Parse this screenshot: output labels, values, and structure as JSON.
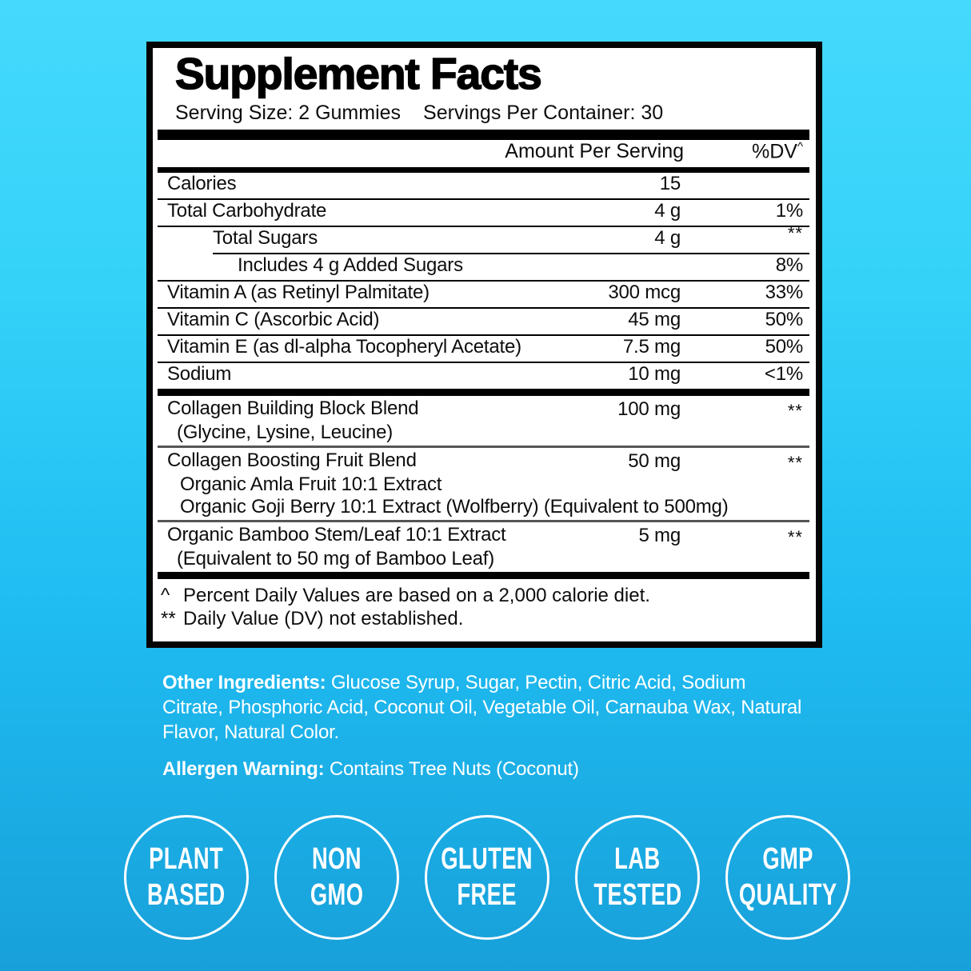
{
  "colors": {
    "background_top": "#45d9fd",
    "background_mid": "#1fbdf2",
    "background_bottom": "#18a0da",
    "panel_background": "#ffffff",
    "panel_border": "#000000",
    "text_dark": "#0d0d0d",
    "text_light": "#ffffff",
    "separator_medium": "#555555"
  },
  "panel": {
    "title": "Supplement Facts",
    "serving_size": "Serving Size: 2 Gummies",
    "servings_per_container": "Servings Per Container: 30",
    "columns": {
      "amount": "Amount Per Serving",
      "dv": "%DV",
      "dv_mark": "^"
    },
    "rows": [
      {
        "name": "Calories",
        "amount": "15",
        "dv": "",
        "indent": 0,
        "sep": "thin"
      },
      {
        "name": "Total Carbohydrate",
        "amount": "4 g",
        "dv": "1%",
        "indent": 0,
        "sep": "thin"
      },
      {
        "name": "Total Sugars",
        "amount": "4 g",
        "dv": "**",
        "indent": 1,
        "sep": "thin-indent"
      },
      {
        "name": "Includes 4 g Added Sugars",
        "amount": "",
        "dv": "8%",
        "indent": 2,
        "sep": "thin"
      },
      {
        "name": "Vitamin A (as Retinyl Palmitate)",
        "amount": "300 mcg",
        "dv": "33%",
        "indent": 0,
        "sep": "thin"
      },
      {
        "name": "Vitamin C (Ascorbic Acid)",
        "amount": "45 mg",
        "dv": "50%",
        "indent": 0,
        "sep": "thin"
      },
      {
        "name": "Vitamin E (as dl-alpha Tocopheryl Acetate)",
        "amount": "7.5 mg",
        "dv": "50%",
        "indent": 0,
        "sep": "thin"
      },
      {
        "name": "Sodium",
        "amount": "10 mg",
        "dv": "<1%",
        "indent": 0,
        "sep": "thick"
      },
      {
        "name": "Collagen Building Block Blend",
        "amount": "100 mg",
        "dv": "**",
        "indent": 0,
        "sublines": [
          "(Glycine, Lysine, Leucine)"
        ],
        "sep": "medium"
      },
      {
        "name": "Collagen Boosting Fruit Blend",
        "amount": "50 mg",
        "dv": "**",
        "indent": 0,
        "sublines": [
          "Organic Amla Fruit 10:1 Extract",
          "Organic Goji Berry 10:1 Extract (Wolfberry) (Equivalent to 500mg)"
        ],
        "sep": "medium"
      },
      {
        "name": "Organic Bamboo Stem/Leaf 10:1 Extract",
        "amount": "5 mg",
        "dv": "**",
        "indent": 0,
        "sublines": [
          "(Equivalent to 50 mg of Bamboo Leaf)"
        ],
        "sep": "thick"
      }
    ],
    "footnotes": [
      {
        "mark": "^",
        "text": "Percent Daily Values are based on a 2,000 calorie diet."
      },
      {
        "mark": "**",
        "text": "Daily Value (DV) not established."
      }
    ]
  },
  "other_ingredients": {
    "label": "Other Ingredients:",
    "text": "Glucose Syrup, Sugar, Pectin, Citric Acid, Sodium Citrate, Phosphoric Acid, Coconut Oil, Vegetable Oil, Carnauba Wax, Natural Flavor, Natural Color."
  },
  "allergen_warning": {
    "label": "Allergen Warning:",
    "text": "Contains Tree Nuts (Coconut)"
  },
  "badges": [
    {
      "lines": [
        "PLANT",
        "BASED"
      ]
    },
    {
      "lines": [
        "NON",
        "GMO"
      ]
    },
    {
      "lines": [
        "GLUTEN",
        "FREE"
      ]
    },
    {
      "lines": [
        "LAB",
        "TESTED"
      ]
    },
    {
      "lines": [
        "GMP",
        "QUALITY"
      ]
    }
  ]
}
